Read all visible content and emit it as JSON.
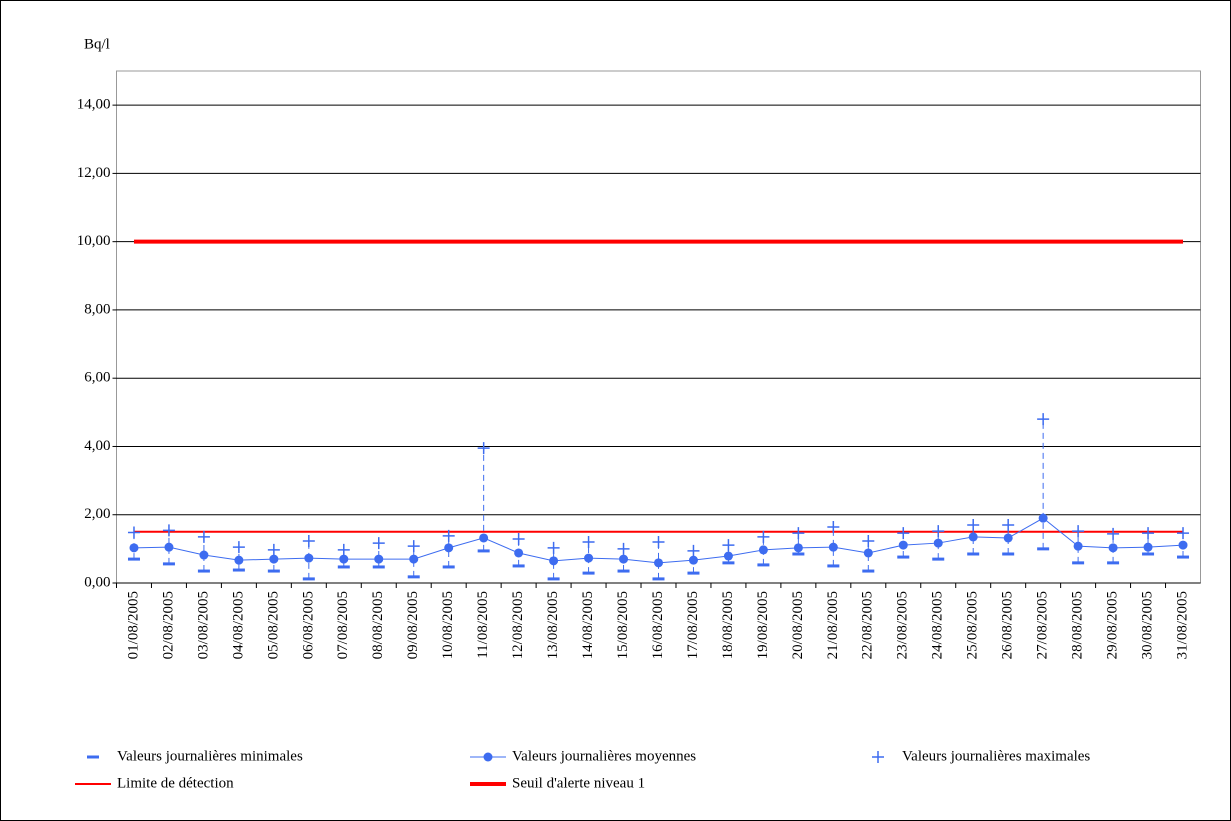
{
  "chart_data": {
    "type": "line",
    "y_label": "Bq/l",
    "categories": [
      "01/08/2005",
      "02/08/2005",
      "03/08/2005",
      "04/08/2005",
      "05/08/2005",
      "06/08/2005",
      "07/08/2005",
      "08/08/2005",
      "09/08/2005",
      "10/08/2005",
      "11/08/2005",
      "12/08/2005",
      "13/08/2005",
      "14/08/2005",
      "15/08/2005",
      "16/08/2005",
      "17/08/2005",
      "18/08/2005",
      "19/08/2005",
      "20/08/2005",
      "21/08/2005",
      "22/08/2005",
      "23/08/2005",
      "24/08/2005",
      "25/08/2005",
      "26/08/2005",
      "27/08/2005",
      "28/08/2005",
      "29/08/2005",
      "30/08/2005",
      "31/08/2005"
    ],
    "series": [
      {
        "name": "Valeurs journalières minimales",
        "color": "#3d6cf0",
        "marker": "dash",
        "values": [
          0.7,
          0.56,
          0.35,
          0.38,
          0.35,
          0.12,
          0.47,
          0.47,
          0.18,
          0.47,
          0.94,
          0.5,
          0.12,
          0.29,
          0.35,
          0.12,
          0.29,
          0.59,
          0.53,
          0.85,
          0.5,
          0.35,
          0.76,
          0.7,
          0.85,
          0.85,
          1.0,
          0.59,
          0.59,
          0.85,
          0.76
        ]
      },
      {
        "name": "Valeurs journalières moyennes",
        "color": "#3d6cf0",
        "marker": "circle",
        "values": [
          1.03,
          1.05,
          0.82,
          0.67,
          0.7,
          0.73,
          0.7,
          0.7,
          0.7,
          1.03,
          1.32,
          0.88,
          0.65,
          0.73,
          0.7,
          0.59,
          0.67,
          0.79,
          0.97,
          1.03,
          1.05,
          0.88,
          1.11,
          1.17,
          1.35,
          1.32,
          1.9,
          1.08,
          1.03,
          1.05,
          1.11
        ]
      },
      {
        "name": "Valeurs journalières maximales",
        "color": "#3d6cf0",
        "marker": "plus",
        "values": [
          1.48,
          1.54,
          1.35,
          1.05,
          0.97,
          1.23,
          0.97,
          1.17,
          1.08,
          1.38,
          3.95,
          1.29,
          1.03,
          1.2,
          1.0,
          1.2,
          0.94,
          1.11,
          1.35,
          1.46,
          1.64,
          1.23,
          1.46,
          1.52,
          1.7,
          1.7,
          4.8,
          1.52,
          1.44,
          1.46,
          1.46
        ]
      }
    ],
    "reference_lines": [
      {
        "name": "Limite de détection",
        "color": "#ff0000",
        "value": 1.5,
        "width": 2
      },
      {
        "name": "Seuil d'alerte niveau 1",
        "color": "#ff0000",
        "value": 10,
        "width": 4
      }
    ],
    "ylim": [
      0,
      15
    ],
    "yticks": [
      {
        "value": 0,
        "label": "0,00"
      },
      {
        "value": 2,
        "label": "2,00"
      },
      {
        "value": 4,
        "label": "4,00"
      },
      {
        "value": 6,
        "label": "6,00"
      },
      {
        "value": 8,
        "label": "8,00"
      },
      {
        "value": 10,
        "label": "10,00"
      },
      {
        "value": 12,
        "label": "12,00"
      },
      {
        "value": 14,
        "label": "14,00"
      }
    ],
    "grid": true
  }
}
